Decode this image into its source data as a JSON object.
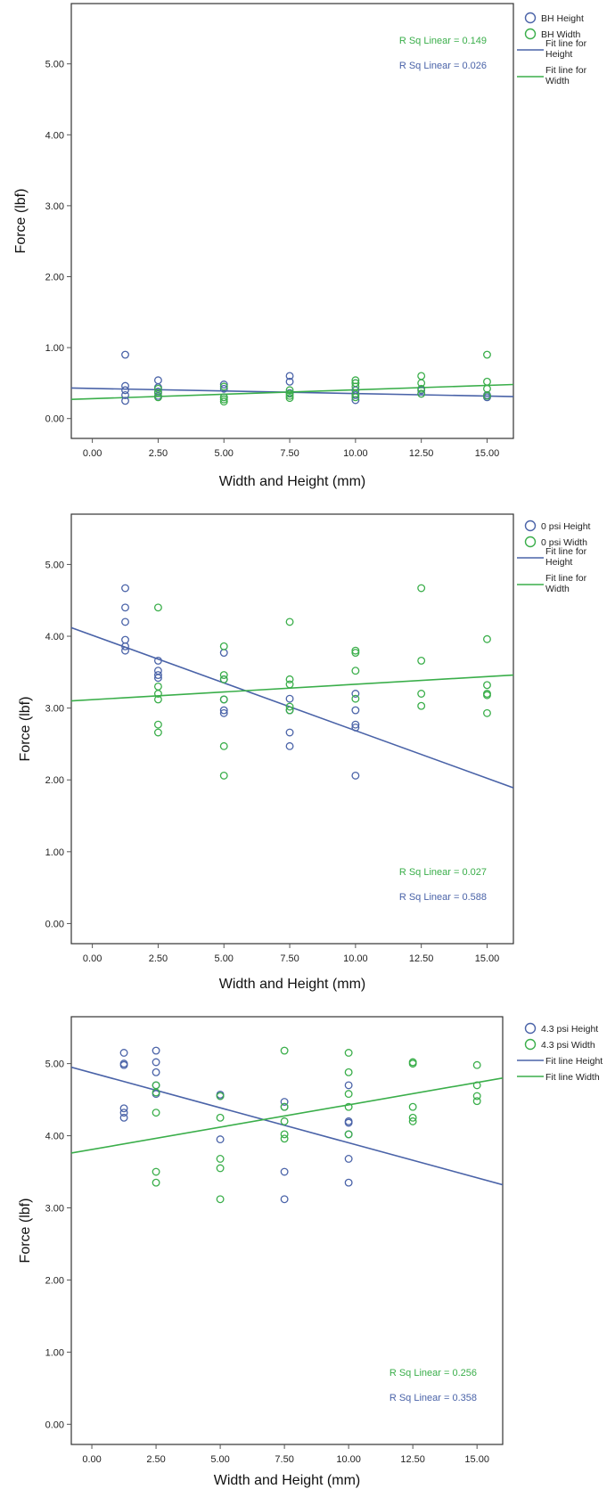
{
  "colors": {
    "height": "#4a63a8",
    "width": "#3aae4a",
    "axis": "#333333",
    "tick_mark": "#555555"
  },
  "chart_data": [
    {
      "type": "scatter",
      "xlabel": "Width and Height (mm)",
      "ylabel": "Force (lbf)",
      "xlim": [
        -0.8,
        16.0
      ],
      "ylim": [
        -0.28,
        5.85
      ],
      "xticks": [
        0,
        2.5,
        5,
        7.5,
        10,
        12.5,
        15
      ],
      "xtick_labels": [
        "0.00",
        "2.50",
        "5.00",
        "7.50",
        "10.00",
        "12.50",
        "15.00"
      ],
      "yticks": [
        0,
        1,
        2,
        3,
        4,
        5
      ],
      "ytick_labels": [
        "0.00",
        "1.00",
        "2.00",
        "3.00",
        "4.00",
        "5.00"
      ],
      "legend_position": "top-right, outside plot",
      "legend": [
        {
          "kind": "marker",
          "label": "BH Height",
          "color": "#4a63a8"
        },
        {
          "kind": "marker",
          "label": "BH Width",
          "color": "#3aae4a"
        },
        {
          "kind": "line",
          "label": "Fit line for Height",
          "color": "#4a63a8"
        },
        {
          "kind": "line",
          "label": "Fit line for Width",
          "color": "#3aae4a"
        }
      ],
      "series": [
        {
          "name": "BH Height",
          "color": "#4a63a8",
          "points": [
            [
              1.25,
              0.9
            ],
            [
              1.25,
              0.46
            ],
            [
              1.25,
              0.4
            ],
            [
              1.25,
              0.33
            ],
            [
              1.25,
              0.25
            ],
            [
              2.5,
              0.54
            ],
            [
              2.5,
              0.44
            ],
            [
              2.5,
              0.38
            ],
            [
              2.5,
              0.32
            ],
            [
              5,
              0.48
            ],
            [
              5,
              0.42
            ],
            [
              5,
              0.3
            ],
            [
              7.5,
              0.6
            ],
            [
              7.5,
              0.52
            ],
            [
              7.5,
              0.36
            ],
            [
              10,
              0.5
            ],
            [
              10,
              0.4
            ],
            [
              10,
              0.33
            ],
            [
              10,
              0.26
            ],
            [
              12.5,
              0.4
            ],
            [
              12.5,
              0.35
            ],
            [
              15,
              0.33
            ],
            [
              15,
              0.3
            ]
          ]
        },
        {
          "name": "BH Width",
          "color": "#3aae4a",
          "points": [
            [
              2.5,
              0.42
            ],
            [
              2.5,
              0.36
            ],
            [
              2.5,
              0.3
            ],
            [
              5,
              0.45
            ],
            [
              5,
              0.3
            ],
            [
              5,
              0.27
            ],
            [
              5,
              0.24
            ],
            [
              7.5,
              0.4
            ],
            [
              7.5,
              0.35
            ],
            [
              7.5,
              0.32
            ],
            [
              7.5,
              0.29
            ],
            [
              10,
              0.54
            ],
            [
              10,
              0.5
            ],
            [
              10,
              0.45
            ],
            [
              10,
              0.35
            ],
            [
              10,
              0.3
            ],
            [
              12.5,
              0.6
            ],
            [
              12.5,
              0.5
            ],
            [
              12.5,
              0.42
            ],
            [
              12.5,
              0.35
            ],
            [
              15,
              0.9
            ],
            [
              15,
              0.52
            ],
            [
              15,
              0.42
            ],
            [
              15,
              0.32
            ]
          ]
        }
      ],
      "fit_lines": [
        {
          "color": "#4a63a8",
          "x": [
            -0.8,
            16.0
          ],
          "y": [
            0.43,
            0.31
          ]
        },
        {
          "color": "#3aae4a",
          "x": [
            -0.8,
            16.0
          ],
          "y": [
            0.27,
            0.48
          ]
        }
      ],
      "annotations": [
        {
          "text": "R Sq Linear = 0.149",
          "color": "#3aae4a"
        },
        {
          "text": "R Sq Linear = 0.026",
          "color": "#4a63a8"
        }
      ]
    },
    {
      "type": "scatter",
      "xlabel": "Width and Height (mm)",
      "ylabel": "Force (lbf)",
      "xlim": [
        -0.8,
        16.0
      ],
      "ylim": [
        -0.28,
        5.7
      ],
      "xticks": [
        0,
        2.5,
        5,
        7.5,
        10,
        12.5,
        15
      ],
      "xtick_labels": [
        "0.00",
        "2.50",
        "5.00",
        "7.50",
        "10.00",
        "12.50",
        "15.00"
      ],
      "yticks": [
        0,
        1,
        2,
        3,
        4,
        5
      ],
      "ytick_labels": [
        "0.00",
        "1.00",
        "2.00",
        "3.00",
        "4.00",
        "5.00"
      ],
      "legend_position": "top-right, outside plot",
      "legend": [
        {
          "kind": "marker",
          "label": "0 psi  Height",
          "color": "#4a63a8"
        },
        {
          "kind": "marker",
          "label": "0 psi  Width",
          "color": "#3aae4a"
        },
        {
          "kind": "line",
          "label": "Fit line for Height",
          "color": "#4a63a8"
        },
        {
          "kind": "line",
          "label": "Fit line for Width",
          "color": "#3aae4a"
        }
      ],
      "series": [
        {
          "name": "0 psi  Height",
          "color": "#4a63a8",
          "points": [
            [
              1.25,
              4.67
            ],
            [
              1.25,
              4.4
            ],
            [
              1.25,
              4.2
            ],
            [
              1.25,
              3.95
            ],
            [
              1.25,
              3.86
            ],
            [
              1.25,
              3.8
            ],
            [
              2.5,
              3.66
            ],
            [
              2.5,
              3.52
            ],
            [
              2.5,
              3.46
            ],
            [
              2.5,
              3.42
            ],
            [
              5,
              3.77
            ],
            [
              5,
              3.4
            ],
            [
              5,
              3.12
            ],
            [
              5,
              2.97
            ],
            [
              5,
              2.93
            ],
            [
              7.5,
              3.13
            ],
            [
              7.5,
              2.97
            ],
            [
              7.5,
              2.66
            ],
            [
              7.5,
              2.47
            ],
            [
              10,
              3.2
            ],
            [
              10,
              2.97
            ],
            [
              10,
              2.77
            ],
            [
              10,
              2.73
            ],
            [
              10,
              2.06
            ]
          ]
        },
        {
          "name": "0 psi  Width",
          "color": "#3aae4a",
          "points": [
            [
              2.5,
              4.4
            ],
            [
              2.5,
              3.3
            ],
            [
              2.5,
              3.2
            ],
            [
              2.5,
              3.12
            ],
            [
              2.5,
              2.77
            ],
            [
              2.5,
              2.66
            ],
            [
              5,
              3.86
            ],
            [
              5,
              3.46
            ],
            [
              5,
              3.4
            ],
            [
              5,
              3.12
            ],
            [
              5,
              2.47
            ],
            [
              5,
              2.06
            ],
            [
              7.5,
              4.2
            ],
            [
              7.5,
              3.4
            ],
            [
              7.5,
              3.33
            ],
            [
              7.5,
              3.02
            ],
            [
              7.5,
              2.97
            ],
            [
              10,
              3.8
            ],
            [
              10,
              3.77
            ],
            [
              10,
              3.52
            ],
            [
              10,
              3.13
            ],
            [
              12.5,
              4.67
            ],
            [
              12.5,
              3.66
            ],
            [
              12.5,
              3.2
            ],
            [
              12.5,
              3.03
            ],
            [
              15,
              3.96
            ],
            [
              15,
              3.32
            ],
            [
              15,
              3.2
            ],
            [
              15,
              3.18
            ],
            [
              15,
              2.93
            ]
          ]
        }
      ],
      "fit_lines": [
        {
          "color": "#4a63a8",
          "x": [
            -0.8,
            16.0
          ],
          "y": [
            4.12,
            1.89
          ]
        },
        {
          "color": "#3aae4a",
          "x": [
            -0.8,
            16.0
          ],
          "y": [
            3.1,
            3.46
          ]
        }
      ],
      "annotations": [
        {
          "text": "R Sq Linear = 0.027",
          "color": "#3aae4a"
        },
        {
          "text": "R Sq Linear = 0.588",
          "color": "#4a63a8"
        }
      ]
    },
    {
      "type": "scatter",
      "xlabel": "Width and Height (mm)",
      "ylabel": "Force (lbf)",
      "xlim": [
        -0.8,
        16.0
      ],
      "ylim": [
        -0.28,
        5.65
      ],
      "xticks": [
        0,
        2.5,
        5,
        7.5,
        10,
        12.5,
        15
      ],
      "xtick_labels": [
        "0.00",
        "2.50",
        "5.00",
        "7.50",
        "10.00",
        "12.50",
        "15.00"
      ],
      "yticks": [
        0,
        1,
        2,
        3,
        4,
        5
      ],
      "ytick_labels": [
        "0.00",
        "1.00",
        "2.00",
        "3.00",
        "4.00",
        "5.00"
      ],
      "legend_position": "top-right, outside plot",
      "legend": [
        {
          "kind": "marker",
          "label": "4.3 psi Height",
          "color": "#4a63a8"
        },
        {
          "kind": "marker",
          "label": "4.3 psi Width",
          "color": "#3aae4a"
        },
        {
          "kind": "line",
          "label": "Fit line Height",
          "color": "#4a63a8"
        },
        {
          "kind": "line",
          "label": "Fit line Width",
          "color": "#3aae4a"
        }
      ],
      "series": [
        {
          "name": "4.3 psi Height",
          "color": "#4a63a8",
          "points": [
            [
              1.25,
              5.15
            ],
            [
              1.25,
              5.0
            ],
            [
              1.25,
              4.98
            ],
            [
              1.25,
              4.38
            ],
            [
              1.25,
              4.32
            ],
            [
              1.25,
              4.25
            ],
            [
              2.5,
              5.18
            ],
            [
              2.5,
              5.02
            ],
            [
              2.5,
              4.88
            ],
            [
              2.5,
              4.7
            ],
            [
              2.5,
              4.58
            ],
            [
              5,
              4.57
            ],
            [
              5,
              4.55
            ],
            [
              5,
              3.95
            ],
            [
              7.5,
              4.47
            ],
            [
              7.5,
              4.4
            ],
            [
              7.5,
              3.5
            ],
            [
              7.5,
              3.12
            ],
            [
              10,
              4.7
            ],
            [
              10,
              4.2
            ],
            [
              10,
              4.18
            ],
            [
              10,
              4.02
            ],
            [
              10,
              3.68
            ],
            [
              10,
              3.35
            ]
          ]
        },
        {
          "name": "4.3 psi Width",
          "color": "#3aae4a",
          "points": [
            [
              2.5,
              4.7
            ],
            [
              2.5,
              4.6
            ],
            [
              2.5,
              4.32
            ],
            [
              2.5,
              3.5
            ],
            [
              2.5,
              3.35
            ],
            [
              5,
              4.55
            ],
            [
              5,
              4.25
            ],
            [
              5,
              3.68
            ],
            [
              5,
              3.55
            ],
            [
              5,
              3.12
            ],
            [
              7.5,
              5.18
            ],
            [
              7.5,
              4.4
            ],
            [
              7.5,
              4.2
            ],
            [
              7.5,
              4.02
            ],
            [
              7.5,
              3.96
            ],
            [
              10,
              5.15
            ],
            [
              10,
              4.88
            ],
            [
              10,
              4.58
            ],
            [
              10,
              4.4
            ],
            [
              10,
              4.02
            ],
            [
              12.5,
              5.02
            ],
            [
              12.5,
              5.0
            ],
            [
              12.5,
              4.4
            ],
            [
              12.5,
              4.25
            ],
            [
              12.5,
              4.2
            ],
            [
              15,
              4.98
            ],
            [
              15,
              4.7
            ],
            [
              15,
              4.55
            ],
            [
              15,
              4.48
            ]
          ]
        }
      ],
      "fit_lines": [
        {
          "color": "#4a63a8",
          "x": [
            -0.8,
            16.0
          ],
          "y": [
            4.95,
            3.32
          ]
        },
        {
          "color": "#3aae4a",
          "x": [
            -0.8,
            16.0
          ],
          "y": [
            3.76,
            4.8
          ]
        }
      ],
      "annotations": [
        {
          "text": "R Sq Linear = 0.256",
          "color": "#3aae4a"
        },
        {
          "text": "R Sq Linear = 0.358",
          "color": "#4a63a8"
        }
      ]
    }
  ]
}
